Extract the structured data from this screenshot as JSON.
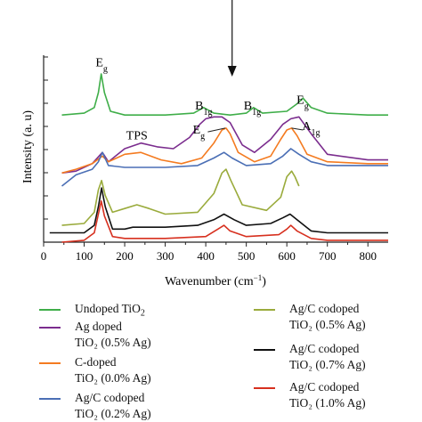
{
  "chart_data": {
    "type": "line",
    "xlabel": "Wavenumber (cm",
    "xlabel_sup": "−1",
    "xlabel_end": ")",
    "ylabel": "Intensity (a. u)",
    "xlim": [
      0,
      850
    ],
    "xticks": [
      "0",
      "100",
      "200",
      "300",
      "400",
      "500",
      "600",
      "700",
      "800"
    ],
    "yticks_shown": false,
    "annotations": [
      {
        "text": "E",
        "sub": "g",
        "x": 143,
        "y": 0.94
      },
      {
        "text": "B",
        "sub": "1g",
        "x": 395,
        "y": 0.71
      },
      {
        "text": "B",
        "sub": "1g",
        "x": 515,
        "y": 0.71
      },
      {
        "text": "E",
        "sub": "g",
        "x": 639,
        "y": 0.74
      },
      {
        "text": "TPS",
        "sub": "",
        "x": 230,
        "y": 0.55
      },
      {
        "text": "E",
        "sub": "g",
        "x": 383,
        "y": 0.58
      },
      {
        "text": "A",
        "sub": "1g",
        "x": 660,
        "y": 0.6
      }
    ],
    "arrow_x": 465,
    "series": [
      {
        "name": "Undoped TiO",
        "name_sub": "2",
        "name_rest": "",
        "color": "#3fae49",
        "x": [
          45,
          100,
          125,
          135,
          142,
          150,
          165,
          200,
          300,
          370,
          395,
          420,
          460,
          500,
          518,
          540,
          600,
          625,
          640,
          660,
          700,
          800,
          850
        ],
        "y": [
          0.68,
          0.69,
          0.72,
          0.8,
          0.9,
          0.8,
          0.7,
          0.68,
          0.68,
          0.69,
          0.72,
          0.69,
          0.68,
          0.69,
          0.72,
          0.69,
          0.7,
          0.74,
          0.77,
          0.72,
          0.69,
          0.68,
          0.68
        ]
      },
      {
        "name": "Ag doped",
        "name_sub": "",
        "name_rest": "TiO₂ (0.5% Ag)",
        "color": "#7b2d8e",
        "x": [
          45,
          80,
          120,
          145,
          160,
          200,
          240,
          280,
          320,
          360,
          385,
          400,
          420,
          440,
          460,
          490,
          520,
          560,
          590,
          610,
          630,
          660,
          700,
          800,
          850
        ],
        "y": [
          0.37,
          0.38,
          0.42,
          0.48,
          0.43,
          0.5,
          0.53,
          0.51,
          0.5,
          0.56,
          0.63,
          0.66,
          0.67,
          0.67,
          0.64,
          0.52,
          0.48,
          0.55,
          0.63,
          0.66,
          0.67,
          0.58,
          0.47,
          0.44,
          0.44
        ]
      },
      {
        "name": "C-doped",
        "name_sub": "",
        "name_rest": "TiO₂ (0.0% Ag)",
        "color": "#f47b20",
        "x": [
          45,
          80,
          120,
          145,
          160,
          200,
          240,
          290,
          340,
          390,
          420,
          440,
          450,
          460,
          480,
          520,
          560,
          585,
          600,
          612,
          625,
          650,
          700,
          800,
          850
        ],
        "y": [
          0.37,
          0.39,
          0.42,
          0.46,
          0.43,
          0.47,
          0.48,
          0.44,
          0.42,
          0.45,
          0.53,
          0.6,
          0.61,
          0.58,
          0.48,
          0.43,
          0.46,
          0.55,
          0.6,
          0.61,
          0.57,
          0.47,
          0.43,
          0.42,
          0.42
        ]
      },
      {
        "name": "Ag/C codoped",
        "name_sub": "",
        "name_rest": "TiO₂ (0.2% Ag)",
        "color": "#4b6fb5",
        "x": [
          45,
          80,
          120,
          135,
          145,
          160,
          200,
          300,
          380,
          420,
          445,
          465,
          500,
          560,
          590,
          610,
          630,
          660,
          700,
          800,
          850
        ],
        "y": [
          0.3,
          0.36,
          0.39,
          0.43,
          0.48,
          0.41,
          0.4,
          0.4,
          0.41,
          0.45,
          0.48,
          0.45,
          0.41,
          0.42,
          0.46,
          0.5,
          0.47,
          0.43,
          0.41,
          0.41,
          0.41
        ]
      },
      {
        "name": "Ag/C codoped",
        "name_sub": "",
        "name_rest": "TiO₂ (0.5% Ag)",
        "color": "#9aab3c",
        "x": [
          45,
          100,
          125,
          135,
          143,
          152,
          170,
          200,
          230,
          260,
          300,
          380,
          420,
          440,
          450,
          462,
          490,
          550,
          585,
          600,
          612,
          620,
          630
        ],
        "y": [
          0.09,
          0.1,
          0.16,
          0.28,
          0.33,
          0.25,
          0.16,
          0.18,
          0.2,
          0.18,
          0.15,
          0.16,
          0.26,
          0.37,
          0.39,
          0.33,
          0.2,
          0.17,
          0.24,
          0.35,
          0.38,
          0.35,
          0.3
        ]
      },
      {
        "name": "Ag/C codoped",
        "name_sub": "",
        "name_rest": "TiO₂ (0.7% Ag)",
        "color": "#111111",
        "x": [
          15,
          100,
          125,
          135,
          143,
          152,
          170,
          200,
          220,
          300,
          380,
          420,
          445,
          470,
          500,
          560,
          590,
          608,
          625,
          660,
          700,
          850
        ],
        "y": [
          0.05,
          0.05,
          0.09,
          0.19,
          0.29,
          0.19,
          0.07,
          0.07,
          0.08,
          0.08,
          0.09,
          0.12,
          0.15,
          0.12,
          0.09,
          0.1,
          0.13,
          0.15,
          0.12,
          0.06,
          0.05,
          0.05
        ]
      },
      {
        "name": "Ag/C codoped",
        "name_sub": "",
        "name_rest": "TiO₂ (1.0% Ag)",
        "color": "#d7301f",
        "x": [
          45,
          100,
          125,
          135,
          142,
          150,
          170,
          200,
          300,
          400,
          430,
          445,
          460,
          500,
          580,
          600,
          610,
          625,
          660,
          700,
          850
        ],
        "y": [
          0.0,
          0.01,
          0.05,
          0.15,
          0.22,
          0.14,
          0.03,
          0.02,
          0.02,
          0.03,
          0.07,
          0.09,
          0.06,
          0.03,
          0.04,
          0.07,
          0.09,
          0.06,
          0.02,
          0.01,
          0.01
        ]
      }
    ]
  }
}
